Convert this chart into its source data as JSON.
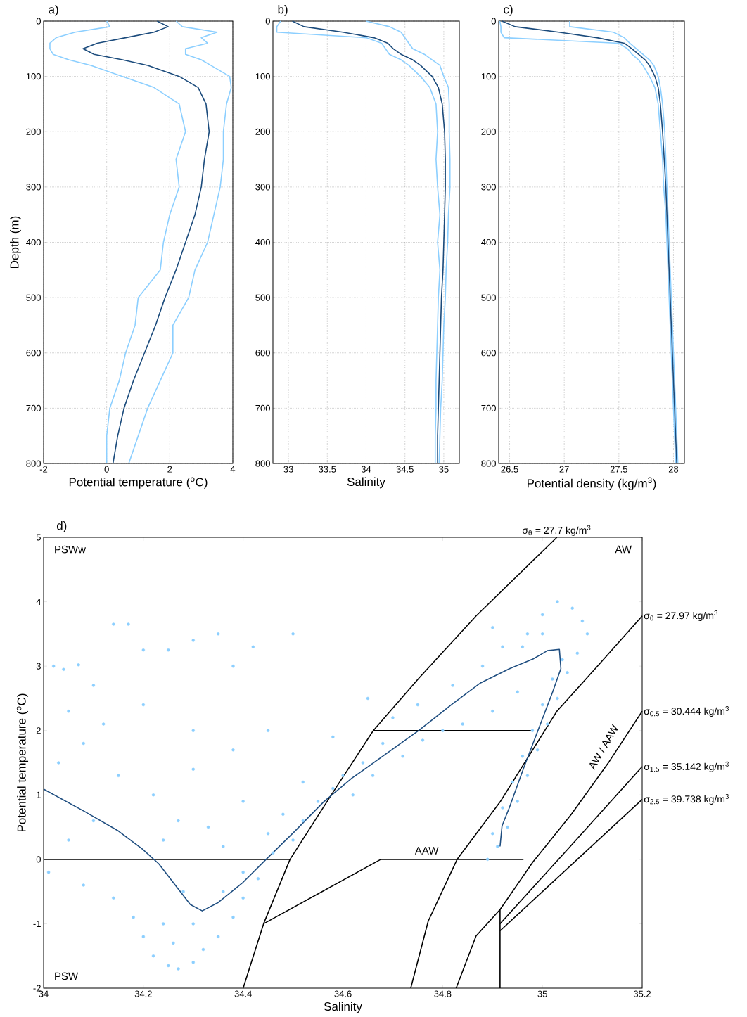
{
  "chart_data": [
    {
      "type": "line",
      "title": "a)",
      "xlabel": "Potential temperature ($^{o}$C)",
      "ylabel": "Depth (m)",
      "xlim": [
        -2,
        4
      ],
      "xticks": [
        -2,
        0,
        2,
        4
      ],
      "ylim": [
        800,
        0
      ],
      "yticks": [
        0,
        100,
        200,
        300,
        400,
        500,
        600,
        700,
        800
      ],
      "grid": true,
      "series": [
        {
          "color": "#8ccfff",
          "x": [
            0,
            0.1,
            -1,
            -1.6,
            -1.8,
            -1.8,
            -1.7,
            -1.2,
            -0.5,
            0.5,
            1.5,
            2.3,
            2.5,
            2.2,
            2.3,
            2.0,
            1.8,
            1.7,
            1.0,
            0.9,
            0.6,
            0.4,
            0.1,
            0,
            0
          ],
          "values": [
            0,
            10,
            20,
            30,
            40,
            50,
            60,
            70,
            80,
            100,
            120,
            150,
            200,
            250,
            300,
            350,
            400,
            450,
            500,
            550,
            600,
            650,
            700,
            750,
            800
          ]
        },
        {
          "color": "#8ccfff",
          "x": [
            2.2,
            2.4,
            3.5,
            3.0,
            3.2,
            2.5,
            2.5,
            3.0,
            3.3,
            3.9,
            3.95,
            3.8,
            3.7,
            3.7,
            3.6,
            3.4,
            3.2,
            2.8,
            2.6,
            2.1,
            2.1,
            1.7,
            1.3,
            1.0,
            0.7
          ],
          "values": [
            0,
            10,
            20,
            30,
            40,
            50,
            60,
            70,
            80,
            100,
            120,
            150,
            200,
            250,
            300,
            350,
            400,
            450,
            500,
            550,
            600,
            650,
            700,
            750,
            800
          ]
        },
        {
          "color": "#1b4b7c",
          "x": [
            1.6,
            1.95,
            1.5,
            0.6,
            -0.3,
            -0.75,
            -0.4,
            0.5,
            1.3,
            2.3,
            2.9,
            3.15,
            3.25,
            3.1,
            3.0,
            2.8,
            2.5,
            2.2,
            1.85,
            1.55,
            1.2,
            0.85,
            0.55,
            0.35,
            0.2
          ],
          "values": [
            0,
            10,
            20,
            30,
            40,
            50,
            60,
            70,
            80,
            100,
            120,
            150,
            200,
            250,
            300,
            350,
            400,
            450,
            500,
            550,
            600,
            650,
            700,
            750,
            800
          ]
        }
      ]
    },
    {
      "type": "line",
      "title": "b)",
      "xlabel": "Salinity",
      "xlim": [
        32.8,
        35.2
      ],
      "xticks": [
        33,
        33.5,
        34,
        34.5,
        35
      ],
      "ylim": [
        800,
        0
      ],
      "yticks": [
        0,
        100,
        200,
        300,
        400,
        500,
        600,
        700,
        800
      ],
      "grid": true,
      "series": [
        {
          "color": "#8ccfff",
          "x": [
            32.9,
            32.85,
            32.85,
            34.0,
            34.2,
            34.25,
            34.3,
            34.45,
            34.55,
            34.7,
            34.82,
            34.9,
            34.92,
            34.9,
            34.92,
            34.95,
            34.92,
            34.95,
            34.93,
            34.92,
            34.91,
            34.9,
            34.9,
            34.89,
            34.89
          ],
          "values": [
            0,
            10,
            20,
            30,
            40,
            50,
            60,
            70,
            80,
            100,
            120,
            150,
            200,
            250,
            300,
            350,
            400,
            450,
            500,
            550,
            600,
            650,
            700,
            750,
            800
          ]
        },
        {
          "color": "#8ccfff",
          "x": [
            34.0,
            34.3,
            34.45,
            34.5,
            34.55,
            34.6,
            34.75,
            34.85,
            34.95,
            35.0,
            35.06,
            35.07,
            35.07,
            35.08,
            35.08,
            35.06,
            35.05,
            35.03,
            35.02,
            35.0,
            34.99,
            34.98,
            34.96,
            34.95,
            34.94
          ],
          "values": [
            0,
            10,
            20,
            30,
            40,
            50,
            60,
            70,
            80,
            100,
            120,
            150,
            200,
            250,
            300,
            350,
            400,
            450,
            500,
            550,
            600,
            650,
            700,
            750,
            800
          ]
        },
        {
          "color": "#1b4b7c",
          "x": [
            33.05,
            33.2,
            33.7,
            34.1,
            34.28,
            34.35,
            34.45,
            34.6,
            34.7,
            34.85,
            34.93,
            34.98,
            35.01,
            35.02,
            35.02,
            35.01,
            35.0,
            34.99,
            34.97,
            34.96,
            34.95,
            34.94,
            34.93,
            34.92,
            34.92
          ],
          "values": [
            0,
            10,
            20,
            30,
            40,
            50,
            60,
            70,
            80,
            100,
            120,
            150,
            200,
            250,
            300,
            350,
            400,
            450,
            500,
            550,
            600,
            650,
            700,
            750,
            800
          ]
        }
      ]
    },
    {
      "type": "line",
      "title": "c)",
      "xlabel": "Potential density (kg/m$^{3}$)",
      "xlim": [
        26.4,
        28.1
      ],
      "xticks": [
        26.5,
        27,
        27.5,
        28
      ],
      "ylim": [
        800,
        0
      ],
      "yticks": [
        0,
        100,
        200,
        300,
        400,
        500,
        600,
        700,
        800
      ],
      "grid": true,
      "series": [
        {
          "color": "#8ccfff",
          "x": [
            26.41,
            26.42,
            26.42,
            26.45,
            27.5,
            27.58,
            27.62,
            27.68,
            27.72,
            27.78,
            27.83,
            27.86,
            27.88,
            27.9,
            27.91,
            27.93,
            27.94,
            27.95,
            27.96,
            27.97,
            27.98,
            27.99,
            28.0,
            28.01,
            28.02
          ],
          "values": [
            0,
            10,
            20,
            30,
            40,
            50,
            60,
            70,
            80,
            100,
            120,
            150,
            200,
            250,
            300,
            350,
            400,
            450,
            500,
            550,
            600,
            650,
            700,
            750,
            800
          ]
        },
        {
          "color": "#8ccfff",
          "x": [
            27.05,
            27.05,
            27.45,
            27.55,
            27.6,
            27.66,
            27.72,
            27.78,
            27.82,
            27.86,
            27.88,
            27.9,
            27.92,
            27.93,
            27.94,
            27.95,
            27.96,
            27.97,
            27.98,
            27.99,
            28.0,
            28.01,
            28.02,
            28.03,
            28.04
          ],
          "values": [
            0,
            10,
            20,
            30,
            40,
            50,
            60,
            70,
            80,
            100,
            120,
            150,
            200,
            250,
            300,
            350,
            400,
            450,
            500,
            550,
            600,
            650,
            700,
            750,
            800
          ]
        },
        {
          "color": "#1b4b7c",
          "x": [
            26.43,
            26.55,
            26.95,
            27.3,
            27.55,
            27.62,
            27.68,
            27.74,
            27.78,
            27.83,
            27.86,
            27.88,
            27.9,
            27.915,
            27.93,
            27.94,
            27.95,
            27.96,
            27.97,
            27.98,
            27.99,
            28.0,
            28.01,
            28.02,
            28.03
          ],
          "values": [
            0,
            10,
            20,
            30,
            40,
            50,
            60,
            70,
            80,
            100,
            120,
            150,
            200,
            250,
            300,
            350,
            400,
            450,
            500,
            550,
            600,
            650,
            700,
            750,
            800
          ]
        }
      ]
    },
    {
      "type": "scatter",
      "title": "d)",
      "xlabel": "Salinity",
      "ylabel": "Potential temperature ($^{o}$C)",
      "xlim": [
        34,
        35.2
      ],
      "xticks": [
        34,
        34.2,
        34.4,
        34.6,
        34.8,
        35,
        35.2
      ],
      "ylim": [
        -2,
        5
      ],
      "yticks": [
        -2,
        -1,
        0,
        1,
        2,
        3,
        4,
        5
      ],
      "series": [
        {
          "type": "scatter",
          "marker": "circle",
          "color": "#8ccfff",
          "x": [
            34.02,
            34.04,
            34.07,
            34.1,
            34.14,
            34.17,
            34.2,
            34.25,
            34.3,
            34.35,
            34.38,
            34.42,
            34.5,
            34.45,
            34.3,
            34.2,
            34.12,
            34.05,
            34.03,
            34.08,
            34.15,
            34.22,
            34.3,
            34.38,
            34.4,
            34.33,
            34.27,
            34.1,
            34.05,
            34.01,
            34.08,
            34.14,
            34.18,
            34.2,
            34.22,
            34.25,
            34.27,
            34.3,
            34.32,
            34.35,
            34.38,
            34.4,
            34.43,
            34.46,
            34.5,
            34.52,
            34.55,
            34.58,
            34.6,
            34.64,
            34.68,
            34.62,
            34.66,
            34.72,
            34.76,
            34.8,
            34.84,
            34.9,
            34.95,
            34.7,
            34.75,
            34.82,
            34.88,
            34.92,
            34.97,
            35.0,
            35.03,
            35.06,
            35.08,
            35.09,
            35.07,
            35.05,
            35.03,
            35.01,
            34.99,
            34.97,
            34.95,
            34.93,
            34.91,
            34.89,
            34.9,
            34.92,
            34.94,
            34.96,
            34.98,
            35.0,
            35.02,
            35.04,
            35.0,
            34.96,
            34.9,
            34.65,
            34.58,
            34.52,
            34.48,
            34.45,
            34.4,
            34.36,
            34.3,
            34.26,
            34.24,
            34.28,
            34.24,
            34.36
          ],
          "values": [
            3.0,
            2.95,
            3.02,
            2.7,
            3.65,
            3.65,
            3.25,
            3.25,
            3.4,
            3.5,
            3.0,
            3.3,
            3.5,
            2.0,
            2.0,
            2.4,
            2.1,
            2.3,
            1.5,
            1.8,
            1.3,
            1.0,
            1.4,
            1.7,
            0.9,
            0.5,
            0.6,
            0.6,
            0.3,
            -0.2,
            -0.4,
            -0.6,
            -0.9,
            -1.2,
            -1.5,
            -1.65,
            -1.7,
            -1.6,
            -1.4,
            -1.2,
            -0.9,
            -0.6,
            -0.3,
            0.1,
            0.3,
            0.6,
            0.9,
            1.1,
            1.3,
            1.5,
            1.8,
            1.0,
            1.3,
            1.6,
            1.85,
            2.0,
            2.1,
            2.3,
            2.6,
            2.2,
            2.4,
            2.7,
            3.0,
            3.3,
            3.5,
            3.8,
            4.0,
            3.9,
            3.7,
            3.5,
            3.2,
            2.9,
            2.5,
            2.1,
            1.7,
            1.3,
            0.9,
            0.5,
            0.2,
            0.0,
            0.4,
            0.8,
            1.2,
            1.6,
            2.0,
            2.4,
            2.8,
            3.1,
            3.5,
            3.3,
            3.6,
            2.5,
            1.9,
            1.2,
            0.7,
            0.4,
            -0.2,
            -0.5,
            -1.0,
            -1.3,
            -1.0,
            -0.5,
            0.3,
            0.2
          ]
        },
        {
          "type": "line",
          "color": "#000000",
          "x": [
            34.4,
            34.441,
            34.494,
            34.58,
            34.661,
            34.752,
            34.867,
            35.029
          ],
          "values": [
            -2,
            -1.0,
            0,
            1.04,
            2.0,
            2.81,
            3.78,
            5.0
          ]
        },
        {
          "type": "line",
          "color": "#000000",
          "x": [
            34.736,
            34.771,
            34.829,
            34.915,
            35.029,
            35.115,
            35.2
          ],
          "values": [
            -2,
            -0.96,
            0,
            0.89,
            2.3,
            3.04,
            3.78
          ]
        },
        {
          "type": "line",
          "color": "#000000",
          "x": [
            34.827,
            34.867,
            34.915,
            34.981,
            35.058,
            35.134,
            35.2
          ],
          "values": [
            -2,
            -1.19,
            -0.78,
            -0.04,
            0.7,
            1.52,
            2.3
          ]
        },
        {
          "type": "line",
          "color": "#000000",
          "x": [
            34.915,
            35.058,
            35.2
          ],
          "values": [
            -1.0,
            0.22,
            1.44
          ]
        },
        {
          "type": "line",
          "color": "#000000",
          "x": [
            34.915,
            35.2
          ],
          "values": [
            -1.11,
            0.93
          ]
        },
        {
          "type": "line",
          "color": "#000000",
          "x": [
            34.915,
            34.915
          ],
          "values": [
            -0.78,
            -2
          ]
        },
        {
          "type": "line",
          "color": "#000000",
          "x": [
            34,
            34.494
          ],
          "values": [
            0,
            0
          ]
        },
        {
          "type": "line",
          "color": "#000000",
          "x": [
            34.441,
            34.676,
            34.962
          ],
          "values": [
            -1.0,
            0,
            0
          ]
        },
        {
          "type": "line",
          "color": "#000000",
          "x": [
            34.661,
            34.977
          ],
          "values": [
            2,
            2
          ]
        },
        {
          "type": "line",
          "color": "#1f4e80",
          "x": [
            34,
            34.083,
            34.15,
            34.198,
            34.231,
            34.265,
            34.294,
            34.318,
            34.35,
            34.398,
            34.446,
            34.504,
            34.561,
            34.618,
            34.685,
            34.752,
            34.819,
            34.876,
            34.934,
            34.981,
            35.01,
            35.034,
            35.037,
            35.02,
            34.991,
            34.962,
            34.934,
            34.919,
            34.915
          ],
          "values": [
            1.09,
            0.74,
            0.44,
            0.16,
            -0.07,
            -0.41,
            -0.7,
            -0.8,
            -0.67,
            -0.37,
            0.0,
            0.44,
            0.89,
            1.26,
            1.63,
            2.0,
            2.41,
            2.74,
            2.96,
            3.11,
            3.24,
            3.26,
            2.96,
            2.59,
            2.0,
            1.41,
            0.81,
            0.52,
            0.2
          ]
        }
      ],
      "annotations": [
        "PSWw",
        "AW",
        "PSW",
        "AAW",
        "AW / AAW",
        "σ$_{θ}$ = 27.7 kg/m$^{3}$",
        "σ$_{θ}$ = 27.97 kg/m$^{3}$",
        "σ$_{0.5}$ = 30.444 kg/m$^{3}$",
        "σ$_{1.5}$ = 35.142 kg/m$^{3}$",
        "σ$_{2.5}$ = 39.738 kg/m$^{3}$"
      ]
    }
  ]
}
